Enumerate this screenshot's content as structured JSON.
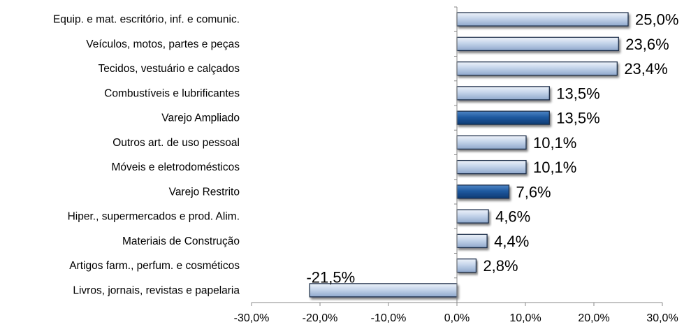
{
  "chart_data": {
    "type": "bar",
    "orientation": "horizontal",
    "categories": [
      "Equip. e mat. escritório, inf. e comunic.",
      "Veículos, motos, partes e peças",
      "Tecidos, vestuário e calçados",
      "Combustíveis e lubrificantes",
      "Varejo Ampliado",
      "Outros art. de uso pessoal",
      "Móveis e eletrodomésticos",
      "Varejo Restrito",
      "Hiper., supermercados e prod. Alim.",
      "Materiais de Construção",
      "Artigos farm., perfum. e cosméticos",
      "Livros, jornais, revistas e papelaria"
    ],
    "values": [
      25.0,
      23.6,
      23.4,
      13.5,
      13.5,
      10.1,
      10.1,
      7.6,
      4.6,
      4.4,
      2.8,
      -21.5
    ],
    "value_labels": [
      "25,0%",
      "23,6%",
      "23,4%",
      "13,5%",
      "13,5%",
      "10,1%",
      "10,1%",
      "7,6%",
      "4,6%",
      "4,4%",
      "2,8%",
      "-21,5%"
    ],
    "highlighted": [
      false,
      false,
      false,
      false,
      true,
      false,
      false,
      true,
      false,
      false,
      false,
      false
    ],
    "xlim": [
      -30,
      30
    ],
    "xticks": [
      -30,
      -20,
      -10,
      0,
      10,
      20,
      30
    ],
    "xtick_labels": [
      "-30,0%",
      "-20,0%",
      "-10,0%",
      "0,0%",
      "10,0%",
      "20,0%",
      "30,0%"
    ],
    "grid": false,
    "legend": "none",
    "colors": {
      "bar_light_top": "#eef3fa",
      "bar_light_mid": "#c4d4ea",
      "bar_light_bottom": "#8fa8cc",
      "bar_dark_top": "#4f86c6",
      "bar_dark_mid": "#1f5aa0",
      "bar_dark_bottom": "#0d3a73",
      "bar_outline": "#1c2f4a",
      "axis": "#888888"
    }
  }
}
